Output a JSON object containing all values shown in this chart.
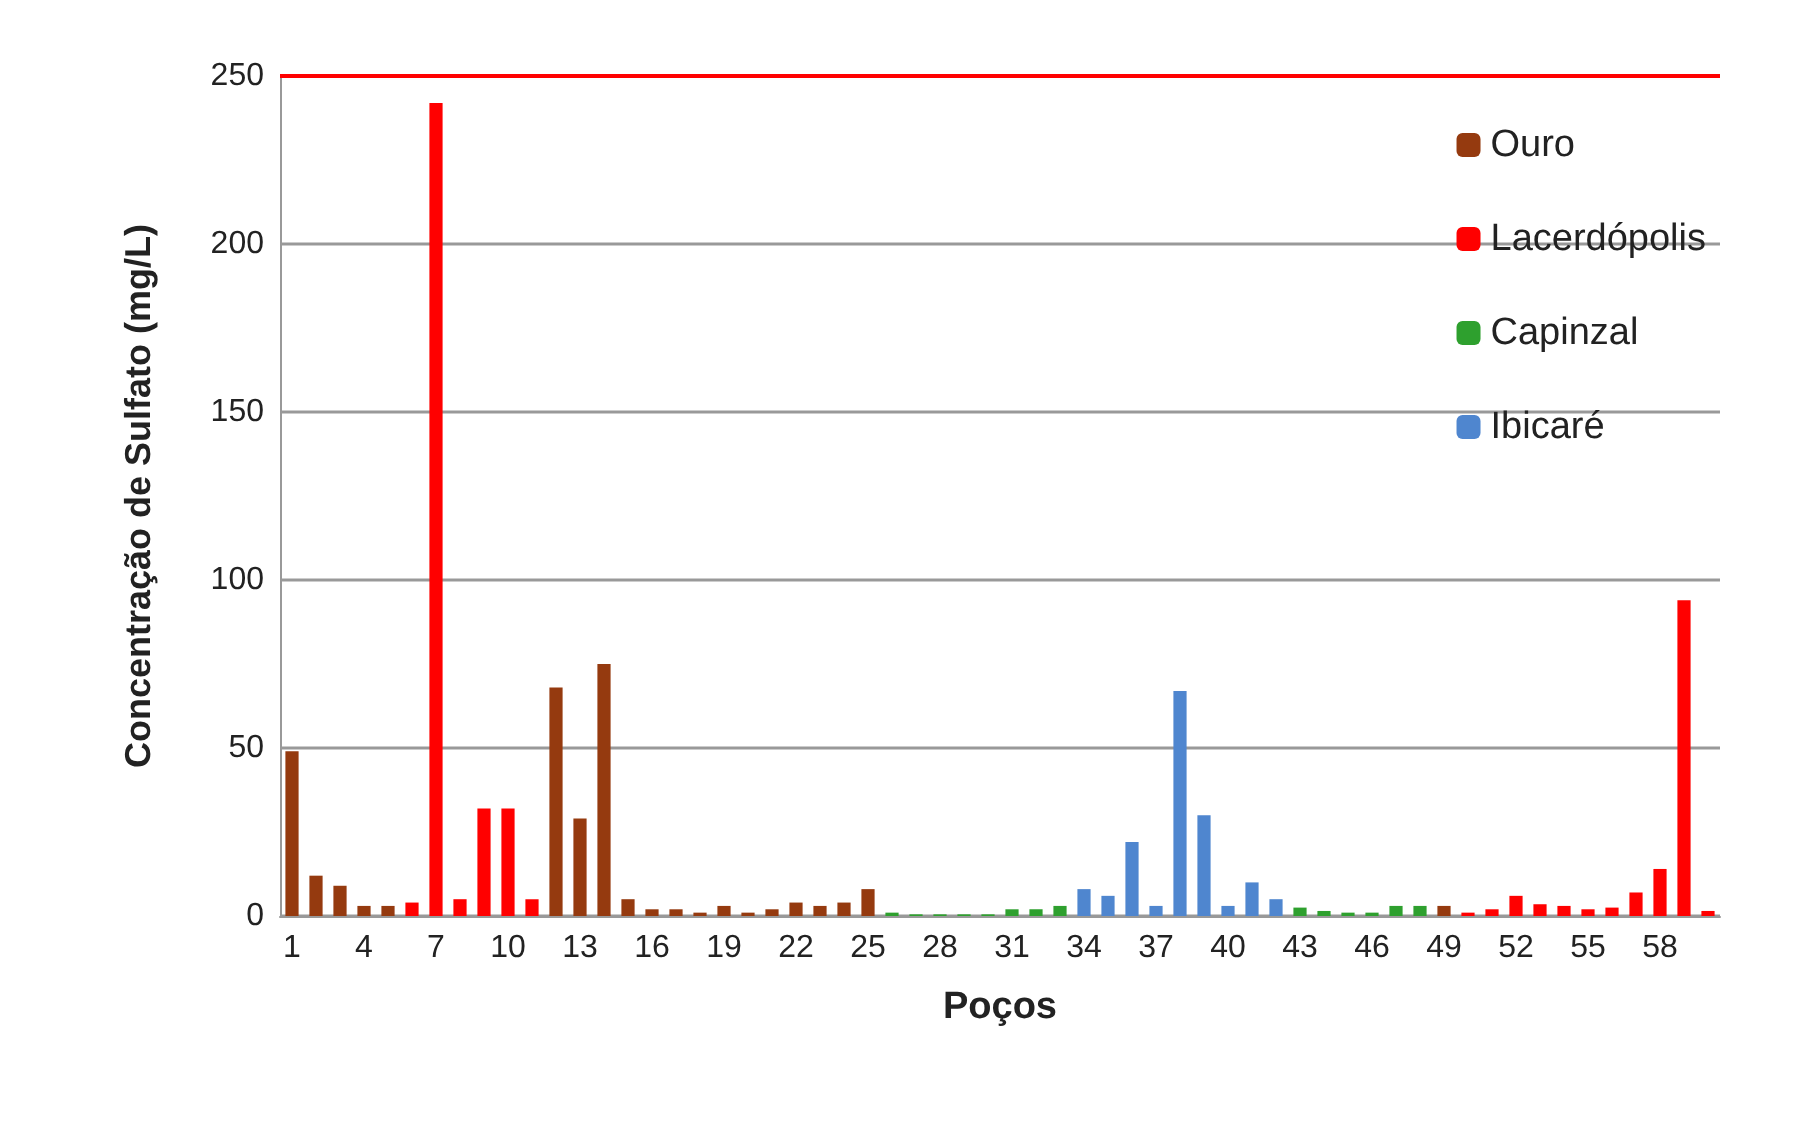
{
  "chart_data": {
    "type": "bar",
    "xlabel": "Poços",
    "ylabel": "Concentração de Sulfato (mg/L)",
    "categories": [
      "1",
      null,
      null,
      "4",
      null,
      null,
      "7",
      null,
      null,
      "10",
      null,
      null,
      "13",
      null,
      null,
      "16",
      null,
      null,
      "19",
      null,
      null,
      "22",
      null,
      null,
      "25",
      null,
      null,
      "28",
      null,
      null,
      "31",
      null,
      null,
      "34",
      null,
      null,
      "37",
      null,
      null,
      "40",
      null,
      null,
      "43",
      null,
      null,
      "46",
      null,
      null,
      "49",
      null,
      null,
      "52",
      null,
      null,
      "55",
      null,
      null,
      "58",
      null,
      null
    ],
    "series": [
      {
        "name": "Ouro",
        "color": "#953a0f",
        "values": [
          49,
          12,
          9,
          3,
          3,
          null,
          null,
          null,
          null,
          null,
          null,
          68,
          29,
          75,
          5,
          2,
          2,
          1,
          3,
          1,
          2,
          4,
          3,
          4,
          8,
          null,
          null,
          null,
          null,
          null,
          null,
          null,
          null,
          null,
          null,
          null,
          null,
          null,
          null,
          null,
          null,
          null,
          null,
          null,
          null,
          null,
          null,
          null,
          3,
          null,
          null,
          null,
          null,
          null,
          null,
          null,
          null,
          null,
          null,
          null
        ]
      },
      {
        "name": "Lacerdópolis",
        "color": "#ff0000",
        "values": [
          null,
          null,
          null,
          null,
          null,
          4,
          242,
          5,
          32,
          32,
          5,
          null,
          null,
          null,
          null,
          null,
          null,
          null,
          null,
          null,
          null,
          null,
          null,
          null,
          null,
          null,
          null,
          null,
          null,
          null,
          null,
          null,
          null,
          null,
          null,
          null,
          null,
          null,
          null,
          null,
          null,
          null,
          null,
          null,
          null,
          null,
          null,
          null,
          null,
          1,
          2,
          6,
          3.5,
          3,
          2,
          2.5,
          7,
          14,
          94,
          1.5
        ]
      },
      {
        "name": "Capinzal",
        "color": "#2ea02e",
        "values": [
          null,
          null,
          null,
          null,
          null,
          null,
          null,
          null,
          null,
          null,
          null,
          null,
          null,
          null,
          null,
          null,
          null,
          null,
          null,
          null,
          null,
          null,
          null,
          null,
          null,
          1,
          0.5,
          0.5,
          0.5,
          0.5,
          2,
          2,
          3,
          null,
          null,
          null,
          null,
          null,
          null,
          null,
          null,
          null,
          2.5,
          1.5,
          1,
          1,
          3,
          3,
          null,
          null,
          null,
          null,
          null,
          null,
          null,
          null,
          null,
          null,
          null,
          null
        ]
      },
      {
        "name": "Ibicaré",
        "color": "#4f86cf",
        "values": [
          null,
          null,
          null,
          null,
          null,
          null,
          null,
          null,
          null,
          null,
          null,
          null,
          null,
          null,
          null,
          null,
          null,
          null,
          null,
          null,
          null,
          null,
          null,
          null,
          null,
          null,
          null,
          null,
          null,
          null,
          null,
          null,
          null,
          8,
          6,
          22,
          3,
          67,
          30,
          3,
          10,
          5,
          null,
          null,
          null,
          null,
          null,
          null,
          null,
          null,
          null,
          null,
          null,
          null,
          null,
          null,
          null,
          null,
          null,
          null
        ]
      }
    ],
    "ylim": [
      0,
      250
    ],
    "yticks": [
      0,
      50,
      100,
      150,
      200,
      250
    ],
    "grid": "y",
    "legend": "top right",
    "ref_lines": [
      {
        "axis": "y",
        "value": 250,
        "color": "#ff0000"
      }
    ]
  }
}
